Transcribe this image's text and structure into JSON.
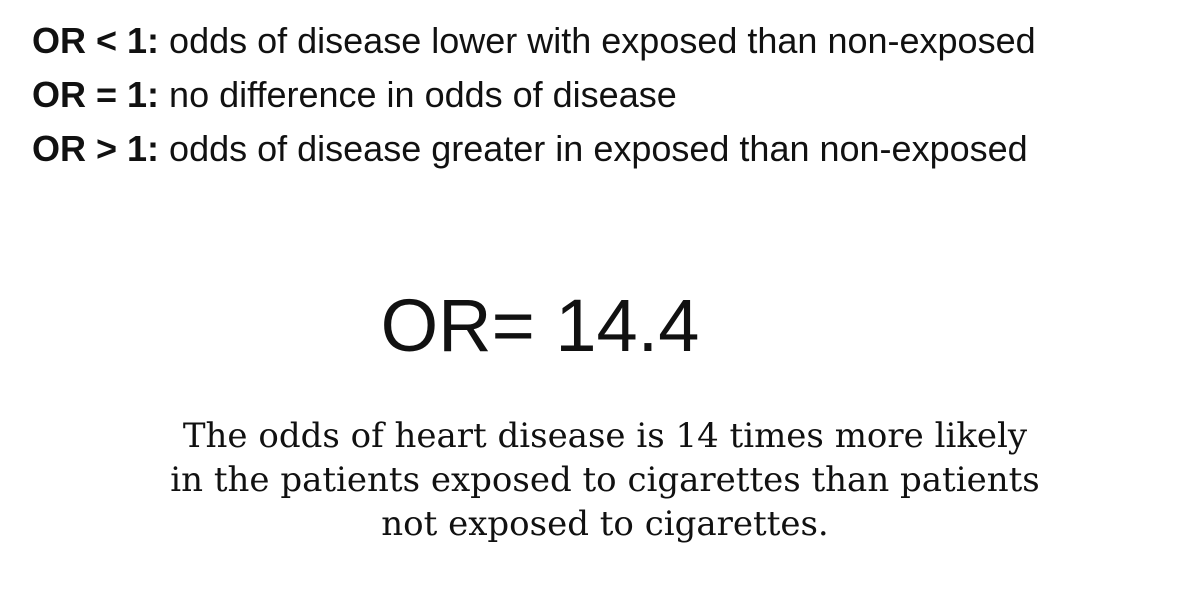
{
  "rules": [
    {
      "label": "OR < 1:",
      "text": " odds of disease lower with exposed than non-exposed"
    },
    {
      "label": "OR = 1:",
      "text": " no difference in odds of disease"
    },
    {
      "label": "OR > 1:",
      "text": " odds of disease greater in exposed than non-exposed"
    }
  ],
  "result": {
    "value_text": "OR= 14.4"
  },
  "interpretation": {
    "lines": [
      "The odds of heart disease is 14 times more likely",
      "in the patients exposed to cigarettes than patients",
      "not exposed to cigarettes."
    ]
  }
}
